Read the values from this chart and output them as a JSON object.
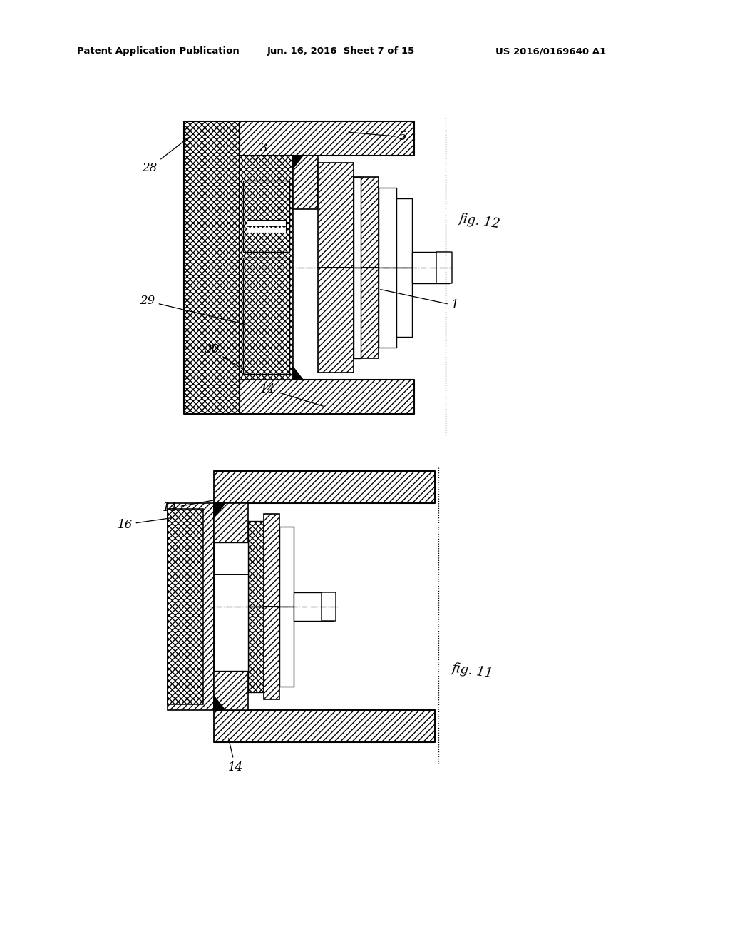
{
  "bg_color": "#ffffff",
  "header_text": "Patent Application Publication",
  "header_date": "Jun. 16, 2016  Sheet 7 of 15",
  "header_patent": "US 2016/0169640 A1",
  "fig12_label": "fig. 12",
  "fig11_label": "fig. 11"
}
